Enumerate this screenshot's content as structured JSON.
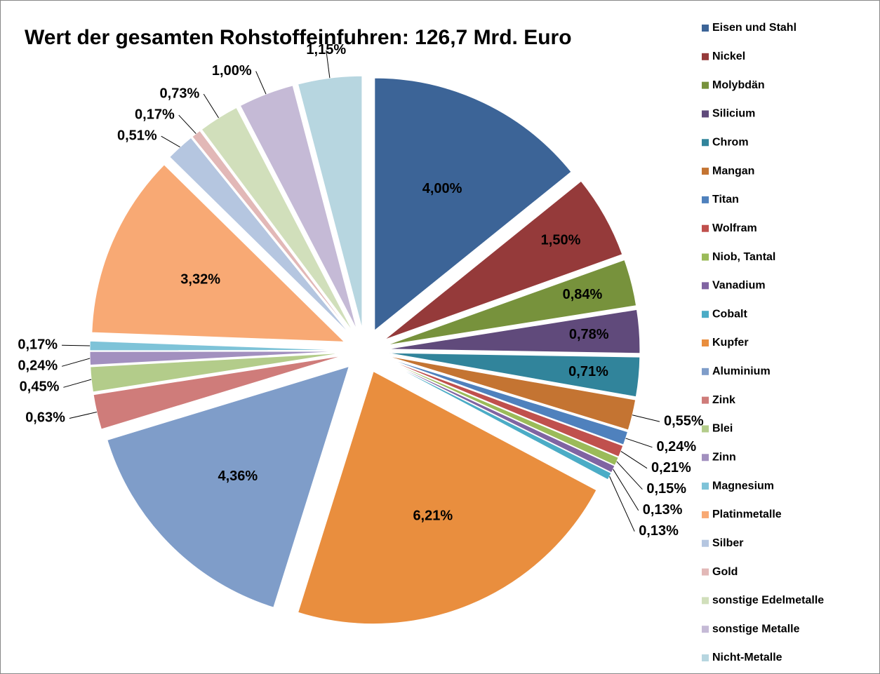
{
  "chart_data": {
    "type": "pie",
    "title": "Wert der gesamten Rohstoffeinfuhren: 126,7 Mrd. Euro",
    "categories": [
      "Eisen und Stahl",
      "Nickel",
      "Molybdän",
      "Silicium",
      "Chrom",
      "Mangan",
      "Titan",
      "Wolfram",
      "Niob, Tantal",
      "Vanadium",
      "Cobalt",
      "Kupfer",
      "Aluminium",
      "Zink",
      "Blei",
      "Zinn",
      "Magnesium",
      "Platinmetalle",
      "Silber",
      "Gold",
      "sonstige Edelmetalle",
      "sonstige Metalle",
      "Nicht-Metalle"
    ],
    "values": [
      4.0,
      1.5,
      0.84,
      0.78,
      0.71,
      0.55,
      0.24,
      0.21,
      0.15,
      0.13,
      0.13,
      6.21,
      4.36,
      0.63,
      0.45,
      0.24,
      0.17,
      3.32,
      0.51,
      0.17,
      0.73,
      1.0,
      1.15
    ],
    "value_labels": [
      "4,00%",
      "1,50%",
      "0,84%",
      "0,78%",
      "0,71%",
      "0,55%",
      "0,24%",
      "0,21%",
      "0,15%",
      "0,13%",
      "0,13%",
      "6,21%",
      "4,36%",
      "0,63%",
      "0,45%",
      "0,24%",
      "0,17%",
      "3,32%",
      "0,51%",
      "0,17%",
      "0,73%",
      "1,00%",
      "1,15%"
    ],
    "colors": [
      "#3c6497",
      "#953a3a",
      "#77923c",
      "#604a7b",
      "#31849b",
      "#c47432",
      "#4f81bd",
      "#c0504d",
      "#9bbb59",
      "#8064a2",
      "#4bacc6",
      "#e98e3e",
      "#7f9dc9",
      "#cf7c7a",
      "#b3cc8a",
      "#a290bf",
      "#7ec3d8",
      "#f8a974",
      "#b5c6e0",
      "#e2b8b7",
      "#d1dfbb",
      "#c5bad6",
      "#b7d6e0"
    ],
    "legend": "right"
  }
}
